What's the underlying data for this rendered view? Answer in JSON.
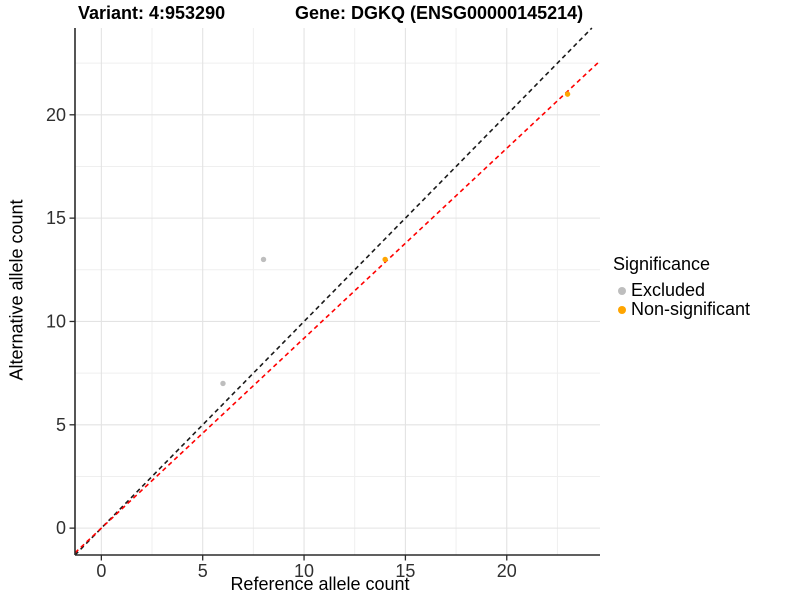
{
  "legend": {
    "title": "Significance",
    "items": [
      {
        "label": "Excluded",
        "color": "#BEBEBE"
      },
      {
        "label": "Non-significant",
        "color": "#FFA500"
      }
    ]
  },
  "chart_data": {
    "type": "scatter",
    "title_left": "Variant: 4:953290",
    "title_right": "Gene: DGKQ (ENSG00000145214)",
    "xlabel": "Reference allele count",
    "ylabel": "Alternative allele count",
    "xlim": [
      -1.3,
      24.6
    ],
    "ylim": [
      -1.3,
      24.2
    ],
    "x_ticks": [
      0,
      5,
      10,
      15,
      20
    ],
    "y_ticks": [
      0,
      5,
      10,
      15,
      20
    ],
    "x_minor_ticks": [
      2.5,
      7.5,
      12.5,
      17.5,
      22.5
    ],
    "y_minor_ticks": [
      2.5,
      7.5,
      12.5,
      17.5,
      22.5
    ],
    "grid": true,
    "legend_position": "right",
    "series": [
      {
        "name": "Excluded",
        "color": "#BEBEBE",
        "points": [
          [
            6,
            7
          ],
          [
            8,
            13
          ]
        ]
      },
      {
        "name": "Non-significant",
        "color": "#FFA500",
        "points": [
          [
            14,
            13
          ],
          [
            23,
            21
          ]
        ]
      }
    ],
    "lines": [
      {
        "name": "identity",
        "color": "#1A1A1A",
        "style": "dashed",
        "slope": 1,
        "intercept": 0
      },
      {
        "name": "fitted-ratio",
        "color": "#FF0000",
        "style": "dashed",
        "slope": 0.919,
        "intercept": 0
      }
    ],
    "colors": {
      "grid_major": "#E3E3E3",
      "grid_minor": "#EFEFEF",
      "axis": "#2B2B2B",
      "tick_text": "#303030"
    }
  }
}
